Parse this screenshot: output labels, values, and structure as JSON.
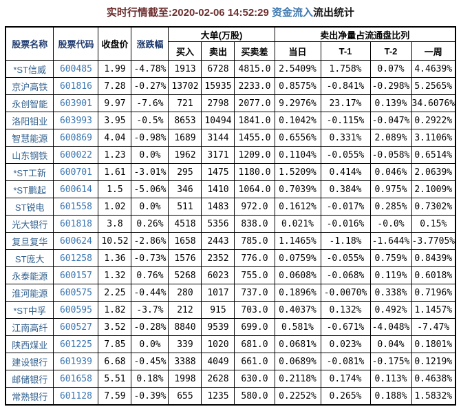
{
  "title": {
    "prefix": "实时行情截至:2020-02-06 14:52:29 ",
    "highlight": "资金流入",
    "suffix": "流出统计"
  },
  "colors": {
    "title_timestamp": "#6e2f2f",
    "title_inflow": "#3e78b0",
    "title_suffix": "#1a1a1a",
    "header_navy": "#1e3a6e",
    "header_black": "#000000",
    "stock_name": "#33618e",
    "stock_code": "#3a76b2",
    "cell_text": "#000000",
    "border": "#000000",
    "background": "#ffffff"
  },
  "chart_data": {
    "type": "table",
    "title": "实时行情截至:2020-02-06 14:52:29 资金流入流出统计",
    "groups": {
      "big_orders": "大单(万股)",
      "sell_ratio": "卖出净量占流通盘比列"
    },
    "columns": [
      "股票名称",
      "股票代码",
      "收盘价",
      "涨跌幅",
      "买入",
      "卖出",
      "买卖差",
      "当日",
      "T-1",
      "T-2",
      "一周"
    ],
    "column_keys": [
      "name",
      "code",
      "close",
      "change",
      "buy",
      "sell",
      "diff",
      "today",
      "t1",
      "t2",
      "week"
    ],
    "rows": [
      [
        "*ST信威",
        "600485",
        "1.99",
        "-4.78%",
        "1913",
        "6728",
        "4815.0",
        "2.5409%",
        "1.758%",
        "0.07%",
        "4.4639%"
      ],
      [
        "京沪高铁",
        "601816",
        "7.28",
        "-0.27%",
        "13702",
        "15935",
        "2233.0",
        "0.8575%",
        "-0.841%",
        "-0.298%",
        "5.2565%"
      ],
      [
        "永创智能",
        "603901",
        "9.97",
        "-7.6%",
        "721",
        "2798",
        "2077.0",
        "9.2976%",
        "23.17%",
        "0.139%",
        "34.6076%"
      ],
      [
        "洛阳钼业",
        "603993",
        "3.95",
        "-0.5%",
        "8653",
        "10494",
        "1841.0",
        "0.1042%",
        "-0.115%",
        "-0.047%",
        "0.2922%"
      ],
      [
        "智慧能源",
        "600869",
        "4.04",
        "-0.98%",
        "1689",
        "3144",
        "1455.0",
        "0.6556%",
        "0.331%",
        "2.089%",
        "3.1106%"
      ],
      [
        "山东钢铁",
        "600022",
        "1.23",
        "0.0%",
        "1962",
        "3171",
        "1209.0",
        "0.1104%",
        "-0.055%",
        "-0.058%",
        "0.6514%"
      ],
      [
        "*ST工新",
        "600701",
        "1.61",
        "-3.01%",
        "295",
        "1475",
        "1180.0",
        "1.5209%",
        "0.414%",
        "0.046%",
        "2.0639%"
      ],
      [
        "*ST鹏起",
        "600614",
        "1.5",
        "-5.06%",
        "346",
        "1410",
        "1064.0",
        "0.7039%",
        "0.384%",
        "0.975%",
        "2.1009%"
      ],
      [
        "ST锐电",
        "601558",
        "1.02",
        "0.0%",
        "511",
        "1483",
        "972.0",
        "0.1612%",
        "-0.017%",
        "0.285%",
        "0.7302%"
      ],
      [
        "光大银行",
        "601818",
        "3.8",
        "0.26%",
        "4518",
        "5356",
        "838.0",
        "0.021%",
        "-0.016%",
        "-0.0%",
        "0.15%"
      ],
      [
        "复旦复华",
        "600624",
        "10.52",
        "-2.86%",
        "1658",
        "2443",
        "785.0",
        "1.1465%",
        "-1.18%",
        "-1.644%",
        "-3.7705%"
      ],
      [
        "ST庞大",
        "601258",
        "1.36",
        "-0.73%",
        "1576",
        "2352",
        "776.0",
        "0.0759%",
        "-0.055%",
        "0.759%",
        "0.8439%"
      ],
      [
        "永泰能源",
        "600157",
        "1.32",
        "0.76%",
        "5268",
        "6023",
        "755.0",
        "0.0608%",
        "-0.068%",
        "0.119%",
        "0.6018%"
      ],
      [
        "淮河能源",
        "600575",
        "2.25",
        "-0.44%",
        "280",
        "1017",
        "737.0",
        "0.1896%",
        "-0.0070%",
        "0.338%",
        "0.7196%"
      ],
      [
        "*ST中孚",
        "600595",
        "1.82",
        "-3.7%",
        "212",
        "915",
        "703.0",
        "0.4037%",
        "0.132%",
        "0.492%",
        "1.1457%"
      ],
      [
        "江南高纤",
        "600527",
        "3.52",
        "-0.28%",
        "8840",
        "9539",
        "699.0",
        "0.581%",
        "-0.671%",
        "-4.048%",
        "-7.47%"
      ],
      [
        "陕西煤业",
        "601225",
        "7.85",
        "0.0%",
        "339",
        "1020",
        "681.0",
        "0.0681%",
        "0.023%",
        "0.04%",
        "0.1801%"
      ],
      [
        "建设银行",
        "601939",
        "6.68",
        "-0.45%",
        "3388",
        "4049",
        "661.0",
        "0.0689%",
        "-0.081%",
        "-0.175%",
        "0.1219%"
      ],
      [
        "邮储银行",
        "601658",
        "5.51",
        "0.18%",
        "1998",
        "2628",
        "630.0",
        "0.2118%",
        "0.174%",
        "0.113%",
        "0.4638%"
      ],
      [
        "常熟银行",
        "601128",
        "7.59",
        "-0.39%",
        "655",
        "1235",
        "580.0",
        "0.2252%",
        "0.265%",
        "0.188%",
        "1.5832%"
      ]
    ]
  }
}
